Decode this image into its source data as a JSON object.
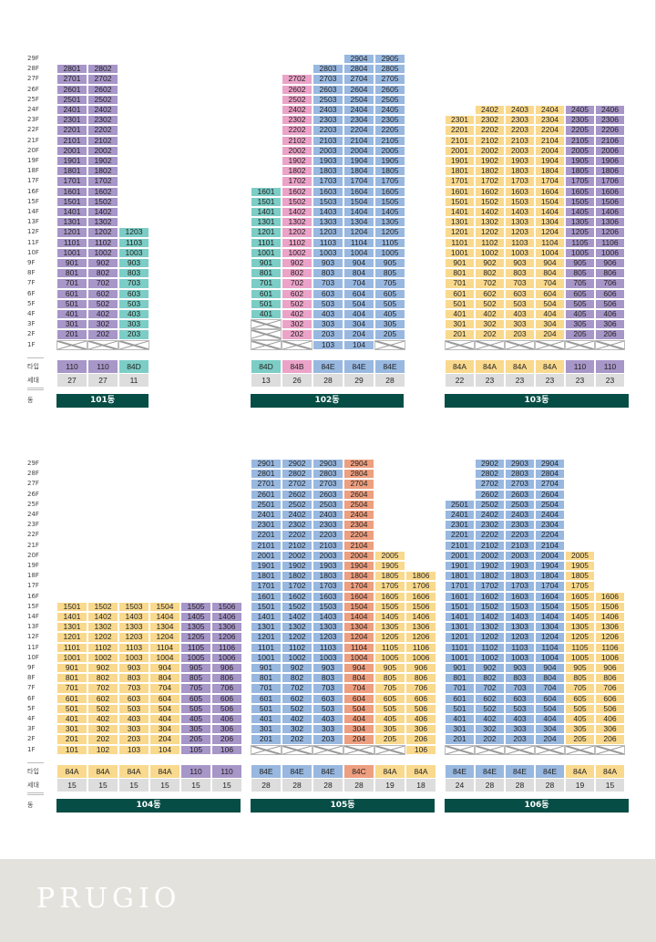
{
  "brand": "PRUGIO",
  "row_labels": {
    "type": "타입",
    "units": "세대",
    "building": "동"
  },
  "colors": {
    "purple": "#a796c8",
    "teal": "#7ccdc6",
    "blue": "#98b8e0",
    "pink": "#eba3c8",
    "yellow": "#f9d98d",
    "salmon": "#ee9f80",
    "bar": "#064d45",
    "gray": "#dddddd"
  },
  "type_colors": {
    "110": "purple",
    "84D": "teal",
    "84B": "pink",
    "84E": "blue",
    "84A": "yellow",
    "84C": "salmon"
  },
  "floors": [
    "29F",
    "28F",
    "27F",
    "26F",
    "25F",
    "24F",
    "23F",
    "22F",
    "21F",
    "20F",
    "19F",
    "18F",
    "17F",
    "16F",
    "15F",
    "14F",
    "13F",
    "12F",
    "11F",
    "10F",
    "9F",
    "8F",
    "7F",
    "6F",
    "5F",
    "4F",
    "3F",
    "2F",
    "1F"
  ],
  "buildings": [
    {
      "name": "101동",
      "panel": 0,
      "columns": [
        {
          "line": 1,
          "type": "110",
          "units": "27",
          "min": 2,
          "max": 28,
          "pilotis": [
            1
          ]
        },
        {
          "line": 2,
          "type": "110",
          "units": "27",
          "min": 2,
          "max": 28,
          "pilotis": [
            1
          ]
        },
        {
          "line": 3,
          "type": "84D",
          "units": "11",
          "min": 2,
          "max": 12,
          "pilotis": [
            1
          ]
        }
      ]
    },
    {
      "name": "102동",
      "panel": 1,
      "columns": [
        {
          "line": 1,
          "type": "84D",
          "units": "13",
          "min": 4,
          "max": 16,
          "pilotis": [
            1,
            2,
            3
          ]
        },
        {
          "line": 2,
          "type": "84B",
          "units": "26",
          "min": 2,
          "max": 27,
          "pilotis": [
            1
          ]
        },
        {
          "line": 3,
          "type": "84E",
          "units": "28",
          "min": 1,
          "max": 28,
          "pilotis": []
        },
        {
          "line": 4,
          "type": "84E",
          "units": "29",
          "min": 1,
          "max": 29,
          "pilotis": []
        },
        {
          "line": 5,
          "type": "84E",
          "units": "28",
          "min": 2,
          "max": 29,
          "pilotis": [
            1
          ]
        }
      ]
    },
    {
      "name": "103동",
      "panel": 2,
      "columns": [
        {
          "line": 1,
          "type": "84A",
          "units": "22",
          "min": 2,
          "max": 23,
          "pilotis": [
            1
          ]
        },
        {
          "line": 2,
          "type": "84A",
          "units": "23",
          "min": 2,
          "max": 24,
          "pilotis": [
            1
          ]
        },
        {
          "line": 3,
          "type": "84A",
          "units": "23",
          "min": 2,
          "max": 24,
          "pilotis": [
            1
          ]
        },
        {
          "line": 4,
          "type": "84A",
          "units": "23",
          "min": 2,
          "max": 24,
          "pilotis": [
            1
          ]
        },
        {
          "line": 5,
          "type": "110",
          "units": "23",
          "min": 2,
          "max": 24,
          "pilotis": [
            1
          ]
        },
        {
          "line": 6,
          "type": "110",
          "units": "23",
          "min": 2,
          "max": 24,
          "pilotis": [
            1
          ]
        }
      ]
    },
    {
      "name": "104동",
      "panel": 0,
      "columns": [
        {
          "line": 1,
          "type": "84A",
          "units": "15",
          "min": 1,
          "max": 15,
          "pilotis": []
        },
        {
          "line": 2,
          "type": "84A",
          "units": "15",
          "min": 1,
          "max": 15,
          "pilotis": []
        },
        {
          "line": 3,
          "type": "84A",
          "units": "15",
          "min": 1,
          "max": 15,
          "pilotis": []
        },
        {
          "line": 4,
          "type": "84A",
          "units": "15",
          "min": 1,
          "max": 15,
          "pilotis": []
        },
        {
          "line": 5,
          "type": "110",
          "units": "15",
          "min": 1,
          "max": 15,
          "pilotis": []
        },
        {
          "line": 6,
          "type": "110",
          "units": "15",
          "min": 1,
          "max": 15,
          "pilotis": []
        }
      ]
    },
    {
      "name": "105동",
      "panel": 1,
      "columns": [
        {
          "line": 1,
          "type": "84E",
          "units": "28",
          "min": 2,
          "max": 29,
          "pilotis": [
            1
          ]
        },
        {
          "line": 2,
          "type": "84E",
          "units": "28",
          "min": 2,
          "max": 29,
          "pilotis": [
            1
          ]
        },
        {
          "line": 3,
          "type": "84E",
          "units": "28",
          "min": 2,
          "max": 29,
          "pilotis": [
            1
          ]
        },
        {
          "line": 4,
          "type": "84C",
          "units": "28",
          "min": 2,
          "max": 29,
          "pilotis": [
            1
          ]
        },
        {
          "line": 5,
          "type": "84A",
          "units": "19",
          "min": 2,
          "max": 20,
          "pilotis": [
            1
          ]
        },
        {
          "line": 6,
          "type": "84A",
          "units": "18",
          "min": 1,
          "max": 18,
          "pilotis": []
        }
      ]
    },
    {
      "name": "106동",
      "panel": 2,
      "columns": [
        {
          "line": 1,
          "type": "84E",
          "units": "24",
          "min": 2,
          "max": 25,
          "pilotis": [
            1
          ]
        },
        {
          "line": 2,
          "type": "84E",
          "units": "28",
          "min": 2,
          "max": 29,
          "pilotis": [
            1
          ]
        },
        {
          "line": 3,
          "type": "84E",
          "units": "28",
          "min": 2,
          "max": 29,
          "pilotis": [
            1
          ]
        },
        {
          "line": 4,
          "type": "84E",
          "units": "28",
          "min": 2,
          "max": 29,
          "pilotis": [
            1
          ]
        },
        {
          "line": 5,
          "type": "84A",
          "units": "19",
          "min": 2,
          "max": 20,
          "pilotis": [
            1
          ]
        },
        {
          "line": 6,
          "type": "84A",
          "units": "15",
          "min": 2,
          "max": 16,
          "pilotis": [
            1
          ]
        }
      ]
    }
  ]
}
